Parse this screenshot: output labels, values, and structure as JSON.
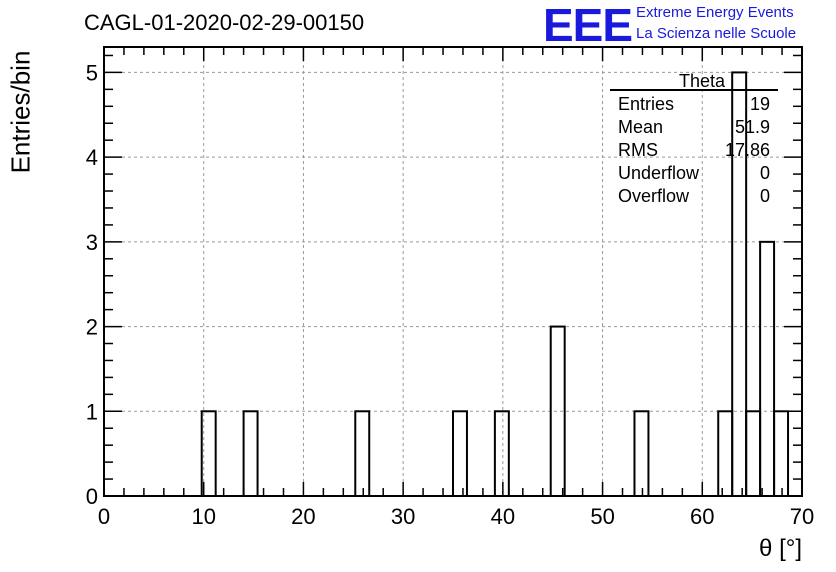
{
  "chart_data": {
    "type": "bar",
    "title": "CAGL-01-2020-02-29-00150",
    "xlabel": "θ [°]",
    "ylabel": "Entries/bin",
    "xlim": [
      0,
      70
    ],
    "ylim": [
      0,
      5.3
    ],
    "grid": true,
    "bin_width": 1.4,
    "x_ticks": [
      0,
      10,
      20,
      30,
      40,
      50,
      60,
      70
    ],
    "y_ticks": [
      0,
      1,
      2,
      3,
      4,
      5
    ],
    "bins": [
      {
        "x_low": 9.8,
        "value": 1
      },
      {
        "x_low": 14.0,
        "value": 1
      },
      {
        "x_low": 25.2,
        "value": 1
      },
      {
        "x_low": 35.0,
        "value": 1
      },
      {
        "x_low": 39.2,
        "value": 1
      },
      {
        "x_low": 44.8,
        "value": 2
      },
      {
        "x_low": 53.2,
        "value": 1
      },
      {
        "x_low": 61.6,
        "value": 1
      },
      {
        "x_low": 63.0,
        "value": 5
      },
      {
        "x_low": 64.4,
        "value": 1
      },
      {
        "x_low": 65.8,
        "value": 3
      },
      {
        "x_low": 67.2,
        "value": 1
      }
    ],
    "stats_box": {
      "name": "Theta",
      "rows": [
        {
          "label": "Entries",
          "value": "19"
        },
        {
          "label": "Mean",
          "value": "51.9"
        },
        {
          "label": "RMS",
          "value": "17.86"
        },
        {
          "label": "Underflow",
          "value": "0"
        },
        {
          "label": "Overflow",
          "value": "0"
        }
      ]
    },
    "colors": {
      "line": "#000000",
      "grid": "#9a9a9a",
      "logo": "#1a1adc"
    }
  },
  "logo": {
    "mark": "EEE",
    "line1": "Extreme Energy Events",
    "line2": "La Scienza nelle Scuole"
  }
}
